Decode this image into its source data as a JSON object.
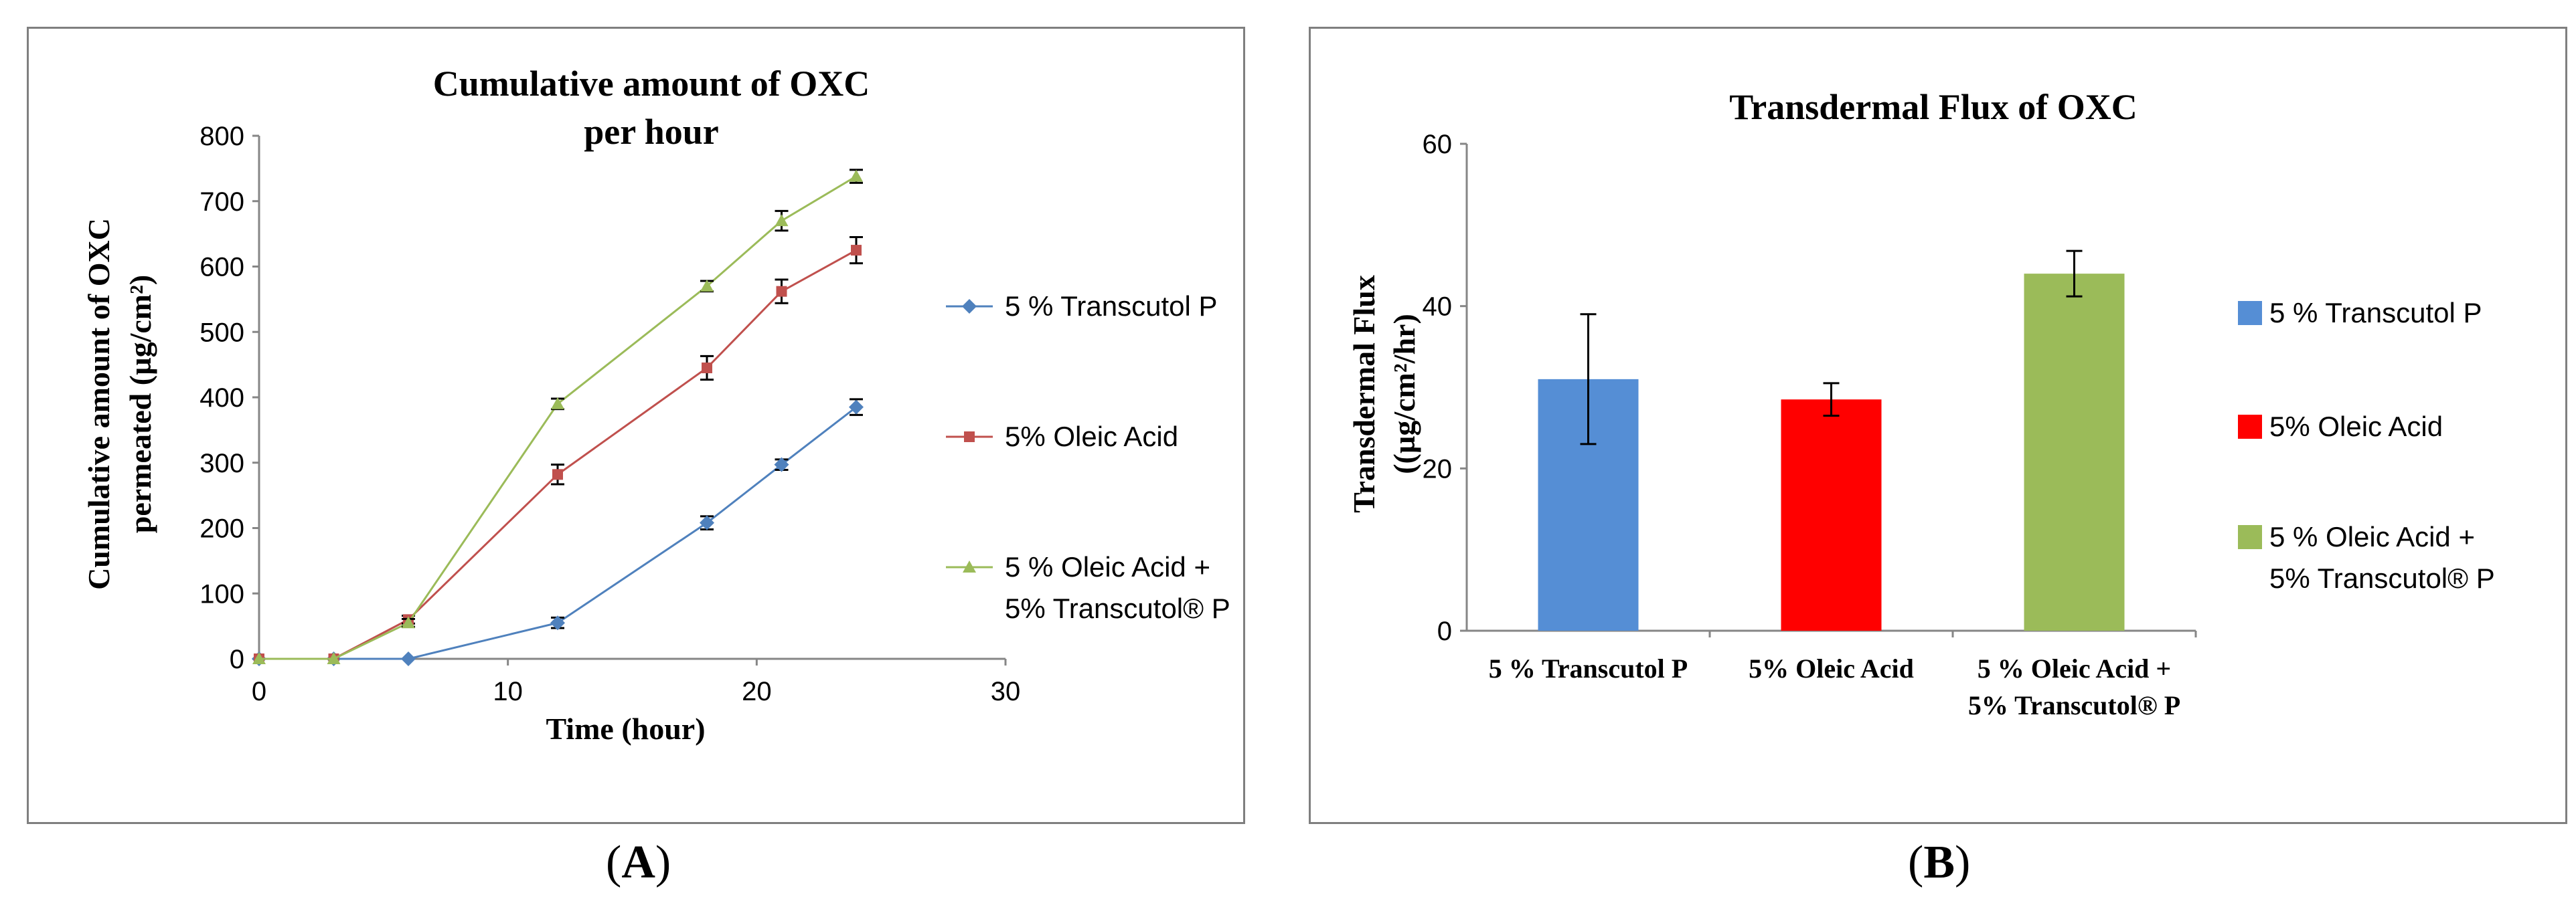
{
  "chart_data": [
    {
      "type": "line",
      "panel": "A",
      "title": "Cumulative amount of OXC per hour",
      "title_lines": [
        "Cumulative amount of OXC",
        "per hour"
      ],
      "xlabel": "Time (hour)",
      "ylabel_lines": [
        "Cumulative amount of OXC",
        "permeated (µg/cm²)"
      ],
      "xlim": [
        0,
        30
      ],
      "ylim": [
        0,
        800
      ],
      "xticks": [
        0,
        10,
        20,
        30
      ],
      "yticks": [
        0,
        100,
        200,
        300,
        400,
        500,
        600,
        700,
        800
      ],
      "x": [
        0,
        3,
        6,
        12,
        18,
        21,
        24
      ],
      "series": [
        {
          "name": "5 % Transcutol P",
          "color": "#4f81bd",
          "marker": "diamond",
          "values": [
            0,
            0,
            0,
            55,
            208,
            297,
            385
          ],
          "errors": [
            0,
            0,
            0,
            8,
            10,
            8,
            12
          ]
        },
        {
          "name": " 5% Oleic Acid",
          "color": "#c0504d",
          "marker": "square",
          "values": [
            0,
            0,
            60,
            282,
            445,
            562,
            625
          ],
          "errors": [
            0,
            0,
            6,
            15,
            18,
            18,
            20
          ]
        },
        {
          "name_lines": [
            "5 % Oleic Acid +",
            "5% Transcutol® P"
          ],
          "name": "5 % Oleic Acid + 5% Transcutol® P",
          "color": "#9bbb59",
          "marker": "triangle",
          "values": [
            0,
            0,
            55,
            390,
            570,
            670,
            738
          ],
          "errors": [
            0,
            0,
            6,
            8,
            8,
            15,
            10
          ]
        }
      ],
      "legend_position": "right"
    },
    {
      "type": "bar",
      "panel": "B",
      "title": "Transdermal Flux of OXC",
      "ylabel_lines": [
        "Transdermal Flux",
        "((µg/cm²/hr)"
      ],
      "ylim": [
        0,
        60
      ],
      "yticks": [
        0,
        20,
        40,
        60
      ],
      "categories": [
        "5 % Transcutol P",
        "5% Oleic Acid",
        "5 % Oleic Acid + 5% Transcutol® P"
      ],
      "category_lines": [
        [
          "5 % Transcutol P"
        ],
        [
          "5% Oleic Acid"
        ],
        [
          "5 % Oleic Acid +",
          "5% Transcutol® P"
        ]
      ],
      "values": [
        31,
        28.5,
        44
      ],
      "errors": [
        8,
        2,
        2.8
      ],
      "colors": [
        "#558ed5",
        "#ff0000",
        "#9bbb59"
      ],
      "legend": [
        {
          "name": "5 % Transcutol P",
          "color": "#558ed5"
        },
        {
          "name": " 5% Oleic Acid",
          "color": "#ff0000"
        },
        {
          "name_lines": [
            "5 % Oleic Acid +",
            "5% Transcutol® P"
          ],
          "name": "5 % Oleic Acid + 5% Transcutol® P",
          "color": "#9bbb59"
        }
      ],
      "legend_position": "right"
    }
  ],
  "labels": {
    "a": "A",
    "b": "B"
  }
}
